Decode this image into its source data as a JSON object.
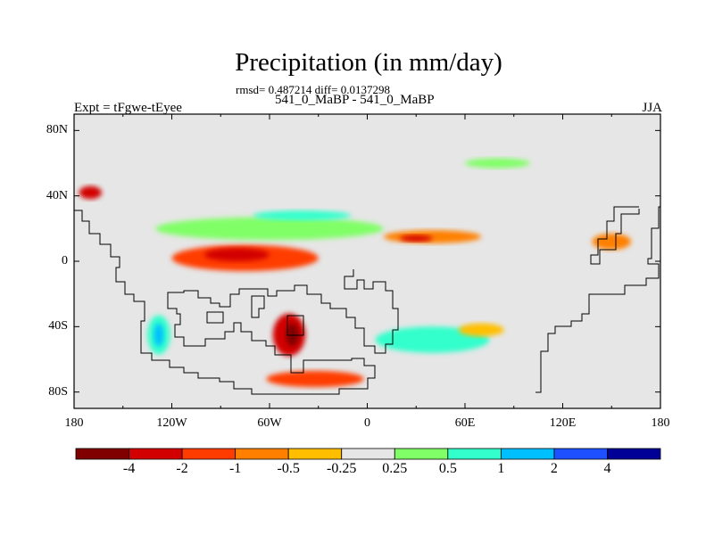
{
  "title": "Precipitation (in mm/day)",
  "stats_line": "rmsd= 0.487214  diff= 0.0137298",
  "subtitle": "541_0_MaBP - 541_0_MaBP",
  "left_label": "Expt = tFgwe-tEyee",
  "right_label": "JJA",
  "chart_data": {
    "type": "contour_map",
    "title": "Precipitation (in mm/day)",
    "variable": "precipitation difference",
    "units": "mm/day",
    "season": "JJA",
    "xlim": [
      -180,
      180
    ],
    "ylim": [
      -90,
      90
    ],
    "x_ticks": [
      -180,
      -120,
      -60,
      0,
      60,
      120,
      180
    ],
    "x_tick_labels": [
      "180",
      "120W",
      "60W",
      "0",
      "60E",
      "120E",
      "180"
    ],
    "y_ticks": [
      80,
      40,
      0,
      -40,
      -80
    ],
    "y_tick_labels": [
      "80N",
      "40N",
      "0",
      "40S",
      "80S"
    ],
    "background_color": "#e6e6e6",
    "colorbar": {
      "levels": [
        -4,
        -2,
        -1,
        -0.5,
        -0.25,
        0.25,
        0.5,
        1,
        2,
        4
      ],
      "labels": [
        "-4",
        "-2",
        "-1",
        "-0.5",
        "-0.25",
        "0.25",
        "0.5",
        "1",
        "2",
        "4"
      ],
      "colors": [
        "#800000",
        "#d20000",
        "#ff3c00",
        "#ff8000",
        "#ffbf00",
        "#e6e6e6",
        "#80ff66",
        "#33ffcc",
        "#00bfff",
        "#1e50ff",
        "#000096"
      ]
    },
    "anomaly_regions": [
      {
        "lon": -75,
        "lat": 2,
        "lon_width": 90,
        "lat_width": 16,
        "level": "-1",
        "color": "#ff3c00"
      },
      {
        "lon": -80,
        "lat": 4,
        "lon_width": 40,
        "lat_width": 8,
        "level": "-2",
        "color": "#d20000"
      },
      {
        "lon": -60,
        "lat": 20,
        "lon_width": 140,
        "lat_width": 14,
        "level": "0.5",
        "color": "#80ff66"
      },
      {
        "lon": -40,
        "lat": 28,
        "lon_width": 60,
        "lat_width": 6,
        "level": "1",
        "color": "#33ffcc"
      },
      {
        "lon": 40,
        "lat": 15,
        "lon_width": 60,
        "lat_width": 8,
        "level": "-0.5",
        "color": "#ff8000"
      },
      {
        "lon": 30,
        "lat": 14,
        "lon_width": 20,
        "lat_width": 4,
        "level": "-2",
        "color": "#d20000"
      },
      {
        "lon": -48,
        "lat": -45,
        "lon_width": 20,
        "lat_width": 26,
        "level": "-2",
        "color": "#d20000"
      },
      {
        "lon": -46,
        "lat": -45,
        "lon_width": 8,
        "lat_width": 14,
        "level": "-4",
        "color": "#800000"
      },
      {
        "lon": -128,
        "lat": -45,
        "lon_width": 14,
        "lat_width": 24,
        "level": "1",
        "color": "#33ffcc"
      },
      {
        "lon": -128,
        "lat": -45,
        "lon_width": 6,
        "lat_width": 14,
        "level": "2",
        "color": "#00bfff"
      },
      {
        "lon": -32,
        "lat": -72,
        "lon_width": 60,
        "lat_width": 10,
        "level": "-1",
        "color": "#ff3c00"
      },
      {
        "lon": 40,
        "lat": -48,
        "lon_width": 70,
        "lat_width": 16,
        "level": "1",
        "color": "#33ffcc"
      },
      {
        "lon": 70,
        "lat": -42,
        "lon_width": 28,
        "lat_width": 8,
        "level": "-0.25",
        "color": "#ffbf00"
      },
      {
        "lon": 150,
        "lat": 12,
        "lon_width": 24,
        "lat_width": 10,
        "level": "-0.5",
        "color": "#ff8000"
      },
      {
        "lon": 80,
        "lat": 60,
        "lon_width": 40,
        "lat_width": 6,
        "level": "0.25",
        "color": "#80ff66"
      },
      {
        "lon": -170,
        "lat": 42,
        "lon_width": 14,
        "lat_width": 8,
        "level": "-2",
        "color": "#d20000"
      }
    ]
  }
}
